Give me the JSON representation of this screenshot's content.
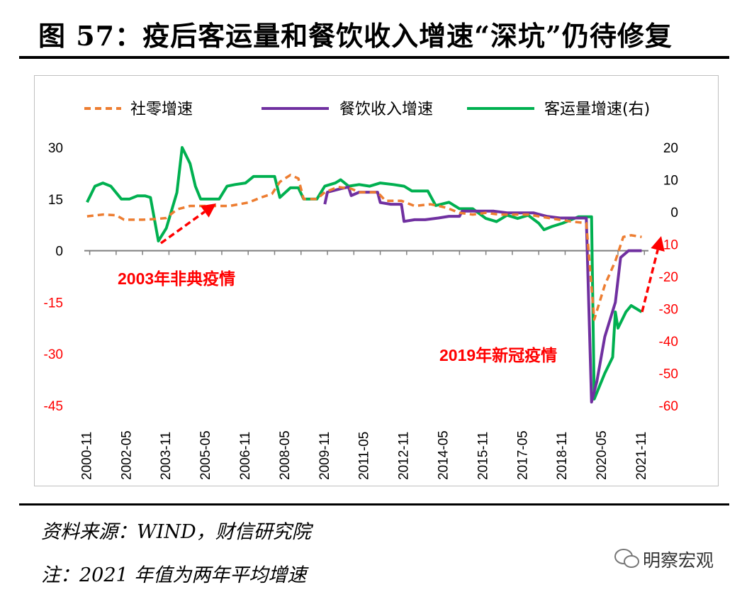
{
  "title": "图 57：疫后客运量和餐饮收入增速“深坑”仍待修复",
  "source": "资料来源：WIND，财信研究院",
  "note": "注：2021 年值为两年平均增速",
  "watermark": "明察宏观",
  "colors": {
    "retail": "#ED7D31",
    "catering": "#7030A0",
    "passenger": "#00B050",
    "arrow": "#FF0000",
    "negative_tick": "#FF0000"
  },
  "chart_data": {
    "type": "line",
    "legend_position": "top",
    "grid": false,
    "x_ticks": [
      "2000-11",
      "2002-05",
      "2003-11",
      "2005-05",
      "2006-11",
      "2008-05",
      "2009-11",
      "2011-05",
      "2012-11",
      "2014-05",
      "2015-11",
      "2017-05",
      "2018-11",
      "2020-05",
      "2021-11"
    ],
    "y_left": {
      "min": -45,
      "max": 30,
      "ticks": [
        "30",
        "15",
        "0",
        "-15",
        "-30",
        "-45"
      ]
    },
    "y_right": {
      "min": -60,
      "max": 20,
      "ticks": [
        "20",
        "10",
        "0",
        "-10",
        "-20",
        "-30",
        "-40",
        "-50",
        "-60"
      ]
    },
    "series": [
      {
        "name": "社零增速",
        "axis": "left",
        "style": "dashed",
        "points": [
          [
            2000.9,
            10.0
          ],
          [
            2001.5,
            10.5
          ],
          [
            2002.0,
            10.3
          ],
          [
            2002.3,
            9.0
          ],
          [
            2003.0,
            9.0
          ],
          [
            2003.5,
            9.2
          ],
          [
            2003.9,
            9.5
          ],
          [
            2004.3,
            12.0
          ],
          [
            2004.8,
            13.0
          ],
          [
            2005.3,
            13.0
          ],
          [
            2005.8,
            13.0
          ],
          [
            2006.3,
            13.0
          ],
          [
            2007.0,
            14.0
          ],
          [
            2007.5,
            15.5
          ],
          [
            2007.9,
            16.5
          ],
          [
            2008.2,
            20.0
          ],
          [
            2008.6,
            22.0
          ],
          [
            2008.9,
            21.0
          ],
          [
            2009.1,
            15.0
          ],
          [
            2009.6,
            15.0
          ],
          [
            2009.9,
            17.0
          ],
          [
            2010.4,
            18.5
          ],
          [
            2010.9,
            18.0
          ],
          [
            2011.2,
            17.0
          ],
          [
            2011.6,
            17.0
          ],
          [
            2011.9,
            17.0
          ],
          [
            2012.2,
            14.5
          ],
          [
            2012.8,
            14.5
          ],
          [
            2013.3,
            13.0
          ],
          [
            2013.9,
            13.5
          ],
          [
            2014.5,
            12.5
          ],
          [
            2015.0,
            11.0
          ],
          [
            2015.5,
            10.5
          ],
          [
            2016.0,
            11.0
          ],
          [
            2016.5,
            10.5
          ],
          [
            2017.0,
            10.5
          ],
          [
            2017.6,
            10.5
          ],
          [
            2018.0,
            10.0
          ],
          [
            2018.6,
            9.2
          ],
          [
            2019.2,
            8.5
          ],
          [
            2019.8,
            8.0
          ],
          [
            2020.1,
            -20.0
          ],
          [
            2020.5,
            -10.0
          ],
          [
            2020.9,
            -3.0
          ],
          [
            2021.2,
            4.0
          ],
          [
            2021.5,
            4.5
          ],
          [
            2021.9,
            4.0
          ]
        ]
      },
      {
        "name": "餐饮收入增速",
        "axis": "left",
        "style": "solid",
        "points": [
          [
            2009.9,
            13.5
          ],
          [
            2010.0,
            17.0
          ],
          [
            2010.5,
            18.0
          ],
          [
            2010.8,
            18.5
          ],
          [
            2010.9,
            16.0
          ],
          [
            2011.2,
            17.0
          ],
          [
            2011.6,
            17.0
          ],
          [
            2011.9,
            17.0
          ],
          [
            2012.0,
            14.0
          ],
          [
            2012.4,
            13.5
          ],
          [
            2012.8,
            13.5
          ],
          [
            2012.9,
            8.5
          ],
          [
            2013.3,
            9.0
          ],
          [
            2013.7,
            9.0
          ],
          [
            2014.2,
            9.5
          ],
          [
            2014.6,
            10.0
          ],
          [
            2015.0,
            10.0
          ],
          [
            2015.1,
            11.5
          ],
          [
            2015.8,
            11.5
          ],
          [
            2016.3,
            11.5
          ],
          [
            2016.8,
            11.0
          ],
          [
            2017.3,
            11.0
          ],
          [
            2017.8,
            11.0
          ],
          [
            2018.3,
            10.0
          ],
          [
            2018.8,
            9.5
          ],
          [
            2019.1,
            9.5
          ],
          [
            2019.8,
            9.5
          ],
          [
            2020.0,
            -44.0
          ],
          [
            2020.2,
            -38.0
          ],
          [
            2020.5,
            -25.0
          ],
          [
            2020.9,
            -15.0
          ],
          [
            2021.1,
            -2.0
          ],
          [
            2021.4,
            0.0
          ],
          [
            2021.7,
            0.0
          ],
          [
            2021.9,
            0.0
          ]
        ]
      },
      {
        "name": "客运量增速(右)",
        "axis": "right",
        "style": "solid",
        "points": [
          [
            2000.9,
            3.0
          ],
          [
            2001.2,
            8.0
          ],
          [
            2001.5,
            9.0
          ],
          [
            2001.8,
            8.0
          ],
          [
            2002.2,
            4.0
          ],
          [
            2002.5,
            4.0
          ],
          [
            2002.8,
            5.0
          ],
          [
            2003.1,
            5.0
          ],
          [
            2003.3,
            4.5
          ],
          [
            2003.6,
            -9.0
          ],
          [
            2003.9,
            -5.0
          ],
          [
            2004.3,
            6.0
          ],
          [
            2004.5,
            20.0
          ],
          [
            2004.8,
            15.0
          ],
          [
            2005.0,
            8.0
          ],
          [
            2005.2,
            4.0
          ],
          [
            2005.6,
            4.0
          ],
          [
            2005.9,
            4.0
          ],
          [
            2006.2,
            8.0
          ],
          [
            2006.5,
            8.5
          ],
          [
            2006.9,
            9.0
          ],
          [
            2007.2,
            11.0
          ],
          [
            2007.6,
            11.0
          ],
          [
            2008.0,
            11.0
          ],
          [
            2008.2,
            4.5
          ],
          [
            2008.6,
            7.5
          ],
          [
            2008.9,
            7.5
          ],
          [
            2009.1,
            4.0
          ],
          [
            2009.6,
            4.0
          ],
          [
            2009.9,
            8.0
          ],
          [
            2010.3,
            9.0
          ],
          [
            2010.5,
            10.0
          ],
          [
            2010.8,
            8.0
          ],
          [
            2011.2,
            8.5
          ],
          [
            2011.6,
            8.0
          ],
          [
            2012.0,
            9.0
          ],
          [
            2012.5,
            8.5
          ],
          [
            2012.9,
            8.0
          ],
          [
            2013.2,
            6.5
          ],
          [
            2013.8,
            6.5
          ],
          [
            2014.1,
            2.0
          ],
          [
            2014.6,
            3.0
          ],
          [
            2015.0,
            1.0
          ],
          [
            2015.5,
            1.0
          ],
          [
            2016.0,
            -2.0
          ],
          [
            2016.4,
            -3.0
          ],
          [
            2016.8,
            -1.0
          ],
          [
            2017.2,
            -2.0
          ],
          [
            2017.6,
            -1.0
          ],
          [
            2018.0,
            -3.5
          ],
          [
            2018.2,
            -5.5
          ],
          [
            2018.5,
            -4.5
          ],
          [
            2018.9,
            -3.5
          ],
          [
            2019.2,
            -2.5
          ],
          [
            2019.5,
            -1.5
          ],
          [
            2019.8,
            -1.5
          ],
          [
            2020.0,
            -1.5
          ],
          [
            2020.1,
            -58.0
          ],
          [
            2020.3,
            -54.0
          ],
          [
            2020.5,
            -50.0
          ],
          [
            2020.8,
            -45.0
          ],
          [
            2020.9,
            -31.0
          ],
          [
            2021.0,
            -36.0
          ],
          [
            2021.3,
            -31.0
          ],
          [
            2021.5,
            -29.0
          ],
          [
            2021.7,
            -30.0
          ],
          [
            2021.9,
            -31.0
          ]
        ]
      }
    ],
    "annotations": [
      {
        "text": "2003年非典疫情",
        "color": "#FF0000"
      },
      {
        "text": "2019年新冠疫情",
        "color": "#FF0000"
      }
    ]
  }
}
